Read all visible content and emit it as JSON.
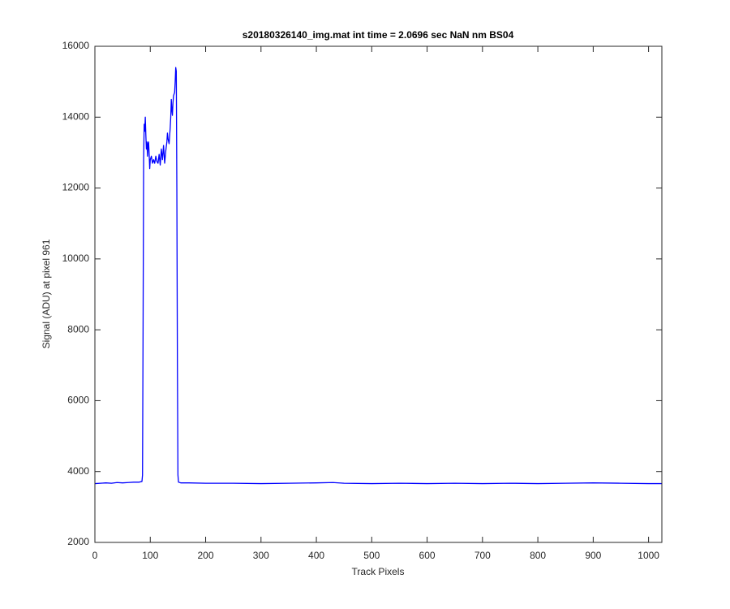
{
  "chart_data": {
    "type": "line",
    "title": "s20180326140_img.mat int time = 2.0696 sec  NaN nm BS04",
    "x_label": "Track Pixels",
    "y_label": "Signal (ADU) at pixel 961",
    "x": [
      0,
      10,
      20,
      30,
      40,
      50,
      60,
      70,
      80,
      85,
      86,
      87,
      88,
      89,
      90,
      91,
      92,
      93,
      94,
      95,
      96,
      97,
      98,
      99,
      100,
      102,
      104,
      106,
      108,
      110,
      112,
      114,
      116,
      118,
      120,
      122,
      124,
      126,
      128,
      130,
      131,
      132,
      134,
      136,
      137,
      138,
      139,
      140,
      141,
      142,
      144,
      145,
      146,
      147,
      148,
      149,
      150,
      151,
      155,
      170,
      200,
      250,
      300,
      350,
      400,
      430,
      450,
      500,
      550,
      600,
      650,
      700,
      750,
      800,
      850,
      900,
      950,
      1000,
      1024
    ],
    "series": [
      {
        "name": "Signal",
        "color": "#0000ff",
        "values": [
          3660,
          3670,
          3680,
          3670,
          3690,
          3680,
          3690,
          3700,
          3700,
          3720,
          3900,
          8000,
          12800,
          13800,
          13600,
          14000,
          13500,
          13100,
          13300,
          12900,
          13250,
          13300,
          12950,
          12550,
          12800,
          12900,
          12700,
          12800,
          12700,
          12900,
          12750,
          12700,
          12950,
          12650,
          13100,
          12800,
          13200,
          12700,
          13050,
          13300,
          13550,
          13400,
          13250,
          13700,
          14000,
          14500,
          14200,
          14050,
          14400,
          14600,
          14700,
          15000,
          15400,
          15300,
          12000,
          7000,
          3900,
          3700,
          3680,
          3680,
          3670,
          3670,
          3660,
          3670,
          3680,
          3690,
          3670,
          3660,
          3670,
          3660,
          3670,
          3660,
          3670,
          3660,
          3670,
          3680,
          3670,
          3660,
          3660
        ]
      }
    ],
    "xlim": [
      0,
      1024
    ],
    "ylim": [
      2000,
      16000
    ],
    "xticks": [
      0,
      100,
      200,
      300,
      400,
      500,
      600,
      700,
      800,
      900,
      1000
    ],
    "yticks": [
      2000,
      4000,
      6000,
      8000,
      10000,
      12000,
      14000,
      16000
    ]
  }
}
